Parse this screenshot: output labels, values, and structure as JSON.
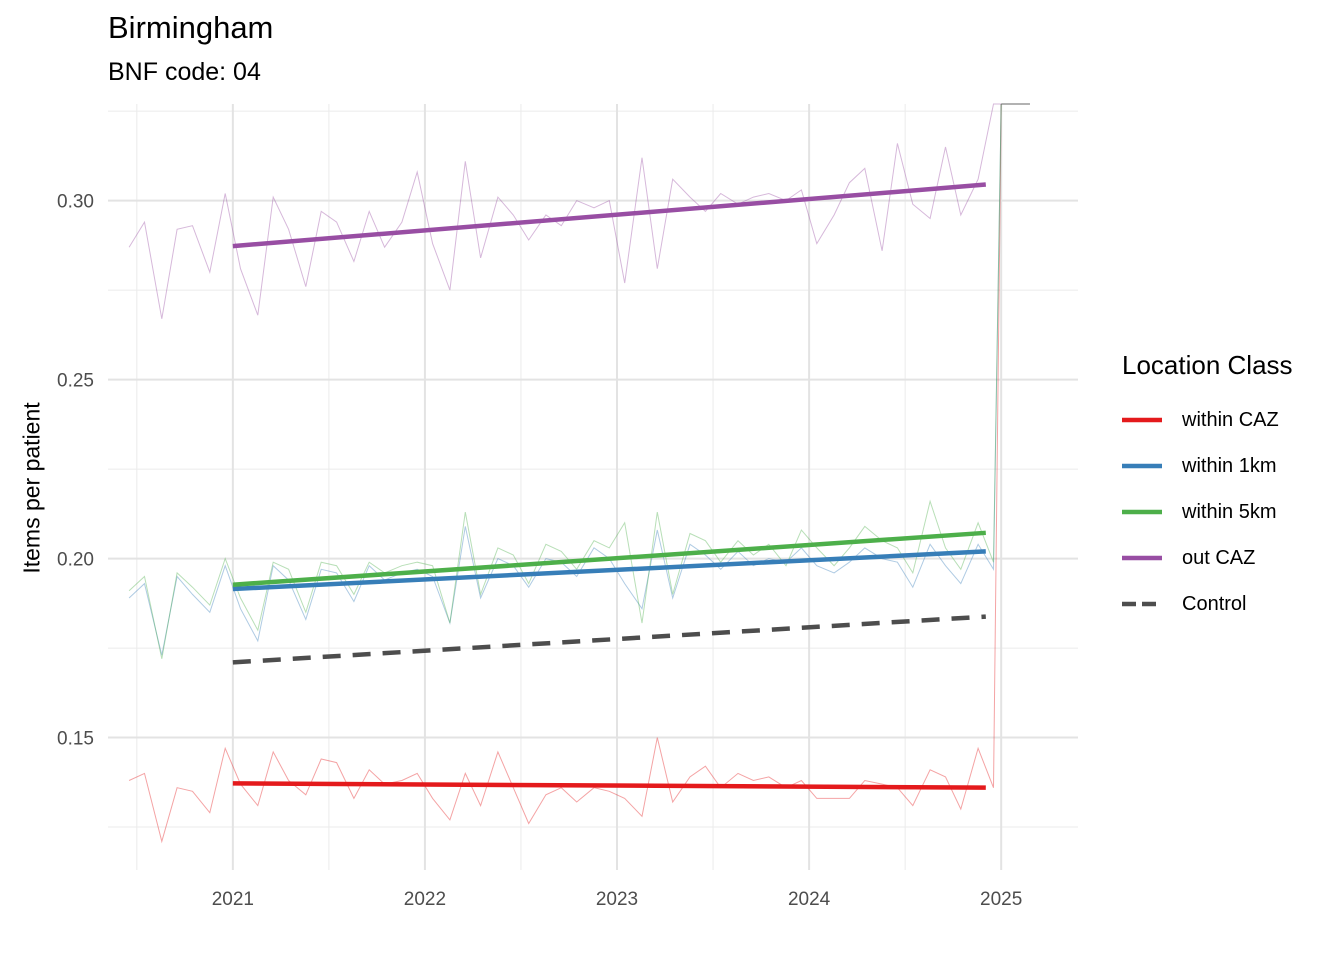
{
  "chart_data": {
    "type": "line",
    "title": "Birmingham",
    "subtitle": "BNF code: 04",
    "xlabel": "",
    "ylabel": "Items per patient",
    "x_ticks": [
      "2021",
      "2022",
      "2023",
      "2024",
      "2025"
    ],
    "y_ticks": [
      "0.15",
      "0.20",
      "0.25",
      "0.30"
    ],
    "xlim": [
      2020.35,
      2025.4
    ],
    "ylim": [
      0.113,
      0.327
    ],
    "grid": true,
    "legend_title": "Location Class",
    "legend_position": "right",
    "series": [
      {
        "name": "within CAZ",
        "color": "#E41A1C",
        "style": "solid",
        "trend": [
          [
            2021.0,
            0.1372
          ],
          [
            2024.92,
            0.136
          ]
        ],
        "monthly_x": [
          2020.46,
          2020.54,
          2020.63,
          2020.71,
          2020.79,
          2020.88,
          2020.96,
          2021.04,
          2021.13,
          2021.21,
          2021.29,
          2021.38,
          2021.46,
          2021.54,
          2021.63,
          2021.71,
          2021.79,
          2021.88,
          2021.96,
          2022.04,
          2022.13,
          2022.21,
          2022.29,
          2022.38,
          2022.46,
          2022.54,
          2022.63,
          2022.71,
          2022.79,
          2022.88,
          2022.96,
          2023.04,
          2023.13,
          2023.21,
          2023.29,
          2023.38,
          2023.46,
          2023.54,
          2023.63,
          2023.71,
          2023.79,
          2023.88,
          2023.96,
          2024.04,
          2024.13,
          2024.21,
          2024.29,
          2024.38,
          2024.46,
          2024.54,
          2024.63,
          2024.71,
          2024.79,
          2024.88,
          2024.96,
          2025.0
        ],
        "monthly_y": [
          0.138,
          0.14,
          0.121,
          0.136,
          0.135,
          0.129,
          0.147,
          0.137,
          0.131,
          0.146,
          0.138,
          0.134,
          0.144,
          0.143,
          0.133,
          0.141,
          0.137,
          0.138,
          0.14,
          0.133,
          0.127,
          0.14,
          0.131,
          0.146,
          0.136,
          0.126,
          0.134,
          0.136,
          0.132,
          0.136,
          0.135,
          0.133,
          0.128,
          0.15,
          0.132,
          0.139,
          0.142,
          0.136,
          0.14,
          0.138,
          0.139,
          0.136,
          0.138,
          0.133,
          0.133,
          0.133,
          0.138,
          0.137,
          0.136,
          0.131,
          0.141,
          0.139,
          0.13,
          0.147,
          0.136,
          0.327
        ]
      },
      {
        "name": "within 1km",
        "color": "#377EB8",
        "style": "solid",
        "trend": [
          [
            2021.0,
            0.1915
          ],
          [
            2024.92,
            0.202
          ]
        ],
        "monthly_x": [
          2020.46,
          2020.54,
          2020.63,
          2020.71,
          2020.79,
          2020.88,
          2020.96,
          2021.04,
          2021.13,
          2021.21,
          2021.29,
          2021.38,
          2021.46,
          2021.54,
          2021.63,
          2021.71,
          2021.79,
          2021.88,
          2021.96,
          2022.04,
          2022.13,
          2022.21,
          2022.29,
          2022.38,
          2022.46,
          2022.54,
          2022.63,
          2022.71,
          2022.79,
          2022.88,
          2022.96,
          2023.04,
          2023.13,
          2023.21,
          2023.29,
          2023.38,
          2023.46,
          2023.54,
          2023.63,
          2023.71,
          2023.79,
          2023.88,
          2023.96,
          2024.04,
          2024.13,
          2024.21,
          2024.29,
          2024.38,
          2024.46,
          2024.54,
          2024.63,
          2024.71,
          2024.79,
          2024.88,
          2024.96,
          2025.0
        ],
        "monthly_y": [
          0.189,
          0.193,
          0.173,
          0.195,
          0.19,
          0.185,
          0.198,
          0.186,
          0.177,
          0.198,
          0.194,
          0.183,
          0.197,
          0.196,
          0.188,
          0.198,
          0.194,
          0.196,
          0.197,
          0.195,
          0.182,
          0.209,
          0.189,
          0.2,
          0.198,
          0.192,
          0.2,
          0.199,
          0.195,
          0.203,
          0.2,
          0.193,
          0.186,
          0.208,
          0.189,
          0.204,
          0.201,
          0.197,
          0.202,
          0.198,
          0.2,
          0.199,
          0.203,
          0.198,
          0.196,
          0.199,
          0.203,
          0.2,
          0.199,
          0.192,
          0.204,
          0.198,
          0.193,
          0.204,
          0.197,
          0.327
        ]
      },
      {
        "name": "within 5km",
        "color": "#4DAF4A",
        "style": "solid",
        "trend": [
          [
            2021.0,
            0.1927
          ],
          [
            2024.92,
            0.2072
          ]
        ],
        "monthly_x": [
          2020.46,
          2020.54,
          2020.63,
          2020.71,
          2020.79,
          2020.88,
          2020.96,
          2021.04,
          2021.13,
          2021.21,
          2021.29,
          2021.38,
          2021.46,
          2021.54,
          2021.63,
          2021.71,
          2021.79,
          2021.88,
          2021.96,
          2022.04,
          2022.13,
          2022.21,
          2022.29,
          2022.38,
          2022.46,
          2022.54,
          2022.63,
          2022.71,
          2022.79,
          2022.88,
          2022.96,
          2023.04,
          2023.13,
          2023.21,
          2023.29,
          2023.38,
          2023.46,
          2023.54,
          2023.63,
          2023.71,
          2023.79,
          2023.88,
          2023.96,
          2024.04,
          2024.13,
          2024.21,
          2024.29,
          2024.38,
          2024.46,
          2024.54,
          2024.63,
          2024.71,
          2024.79,
          2024.88,
          2024.96,
          2025.0
        ],
        "monthly_y": [
          0.191,
          0.195,
          0.172,
          0.196,
          0.192,
          0.187,
          0.2,
          0.189,
          0.18,
          0.199,
          0.197,
          0.185,
          0.199,
          0.198,
          0.19,
          0.199,
          0.196,
          0.198,
          0.199,
          0.198,
          0.182,
          0.213,
          0.19,
          0.203,
          0.201,
          0.193,
          0.204,
          0.202,
          0.197,
          0.205,
          0.203,
          0.21,
          0.182,
          0.213,
          0.19,
          0.207,
          0.205,
          0.199,
          0.205,
          0.201,
          0.204,
          0.198,
          0.208,
          0.203,
          0.198,
          0.203,
          0.209,
          0.205,
          0.203,
          0.196,
          0.216,
          0.203,
          0.197,
          0.21,
          0.199,
          0.327
        ]
      },
      {
        "name": "out CAZ",
        "color": "#984EA3",
        "style": "solid",
        "trend": [
          [
            2021.0,
            0.2873
          ],
          [
            2024.92,
            0.3045
          ]
        ],
        "monthly_x": [
          2020.46,
          2020.54,
          2020.63,
          2020.71,
          2020.79,
          2020.88,
          2020.96,
          2021.04,
          2021.13,
          2021.21,
          2021.29,
          2021.38,
          2021.46,
          2021.54,
          2021.63,
          2021.71,
          2021.79,
          2021.88,
          2021.96,
          2022.04,
          2022.13,
          2022.21,
          2022.29,
          2022.38,
          2022.46,
          2022.54,
          2022.63,
          2022.71,
          2022.79,
          2022.88,
          2022.96,
          2023.04,
          2023.13,
          2023.21,
          2023.29,
          2023.38,
          2023.46,
          2023.54,
          2023.63,
          2023.71,
          2023.79,
          2023.88,
          2023.96,
          2024.04,
          2024.13,
          2024.21,
          2024.29,
          2024.38,
          2024.46,
          2024.54,
          2024.63,
          2024.71,
          2024.79,
          2024.88,
          2024.96,
          2025.0
        ],
        "monthly_y": [
          0.287,
          0.294,
          0.267,
          0.292,
          0.293,
          0.28,
          0.302,
          0.281,
          0.268,
          0.301,
          0.292,
          0.276,
          0.297,
          0.294,
          0.283,
          0.297,
          0.287,
          0.294,
          0.308,
          0.288,
          0.275,
          0.311,
          0.284,
          0.301,
          0.296,
          0.289,
          0.296,
          0.293,
          0.3,
          0.298,
          0.3,
          0.277,
          0.312,
          0.281,
          0.306,
          0.301,
          0.297,
          0.302,
          0.299,
          0.301,
          0.302,
          0.3,
          0.303,
          0.288,
          0.296,
          0.305,
          0.309,
          0.286,
          0.316,
          0.299,
          0.295,
          0.315,
          0.296,
          0.306,
          0.327,
          0.327
        ]
      },
      {
        "name": "Control",
        "color": "#4D4D4D",
        "style": "dashed",
        "trend": [
          [
            2021.0,
            0.171
          ],
          [
            2024.92,
            0.1838
          ]
        ]
      }
    ]
  }
}
